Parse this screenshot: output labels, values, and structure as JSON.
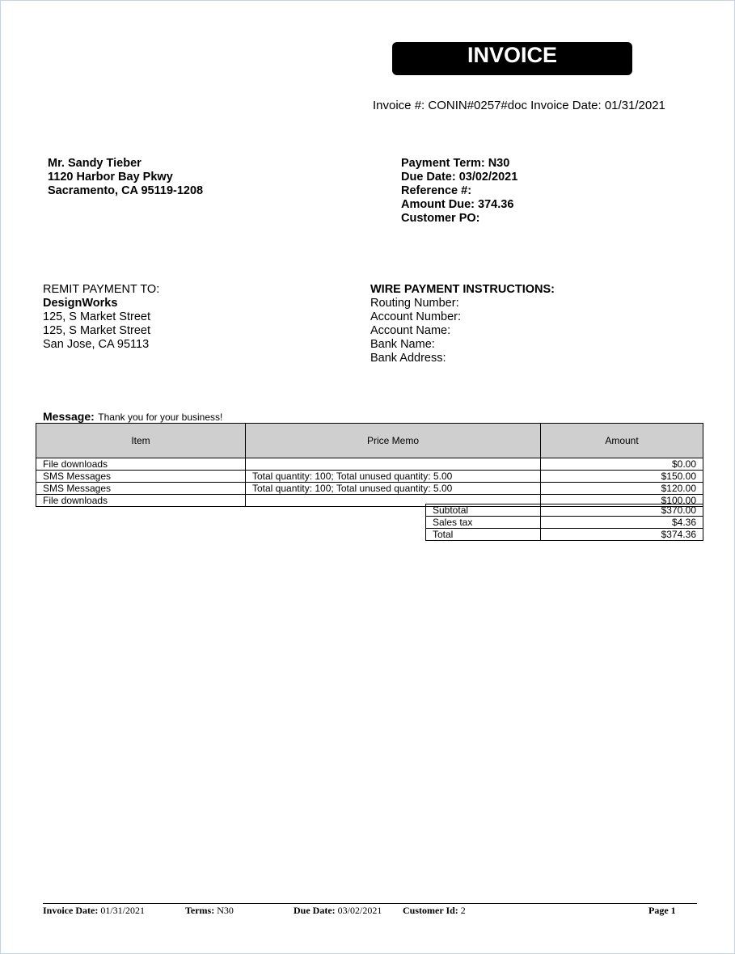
{
  "header": {
    "title": "INVOICE",
    "invoice_line": "Invoice #: CONIN#0257#doc Invoice Date: 01/31/2021"
  },
  "bill_to": [
    "Mr. Sandy Tieber",
    "1120 Harbor Bay Pkwy",
    "Sacramento, CA  95119-1208"
  ],
  "payment_info": [
    "Payment Term: N30",
    "Due Date: 03/02/2021",
    "Reference #:",
    "Amount Due: 374.36",
    "Customer PO:"
  ],
  "remit": {
    "label": "REMIT PAYMENT TO:",
    "name": "DesignWorks",
    "lines": [
      "125, S Market Street",
      "125, S Market Street",
      "San Jose, CA  95113"
    ]
  },
  "wire": {
    "title": "WIRE PAYMENT INSTRUCTIONS:",
    "lines": [
      "Routing Number:",
      "Account Number:",
      "Account Name:",
      "Bank Name:",
      "Bank Address:"
    ]
  },
  "message": {
    "label": "Message:",
    "text": "Thank you for your business!"
  },
  "table": {
    "headers": [
      "Item",
      "Price Memo",
      "Amount"
    ],
    "rows": [
      [
        "File downloads",
        "",
        "$0.00"
      ],
      [
        "SMS Messages",
        "Total quantity: 100; Total unused quantity: 5.00",
        "$150.00"
      ],
      [
        "SMS Messages",
        "Total quantity: 100; Total unused quantity: 5.00",
        "$120.00"
      ],
      [
        "File downloads",
        "",
        "$100.00"
      ]
    ]
  },
  "totals": [
    [
      "Subtotal",
      "$370.00"
    ],
    [
      "Sales tax",
      "$4.36"
    ],
    [
      "Total",
      "$374.36"
    ]
  ],
  "footer": {
    "invoice_date_label": "Invoice Date:",
    "invoice_date": "01/31/2021",
    "terms_label": "Terms:",
    "terms": "N30",
    "due_date_label": "Due Date:",
    "due_date": "03/02/2021",
    "customer_label": "Customer Id:",
    "customer": "2",
    "page": "Page 1"
  }
}
